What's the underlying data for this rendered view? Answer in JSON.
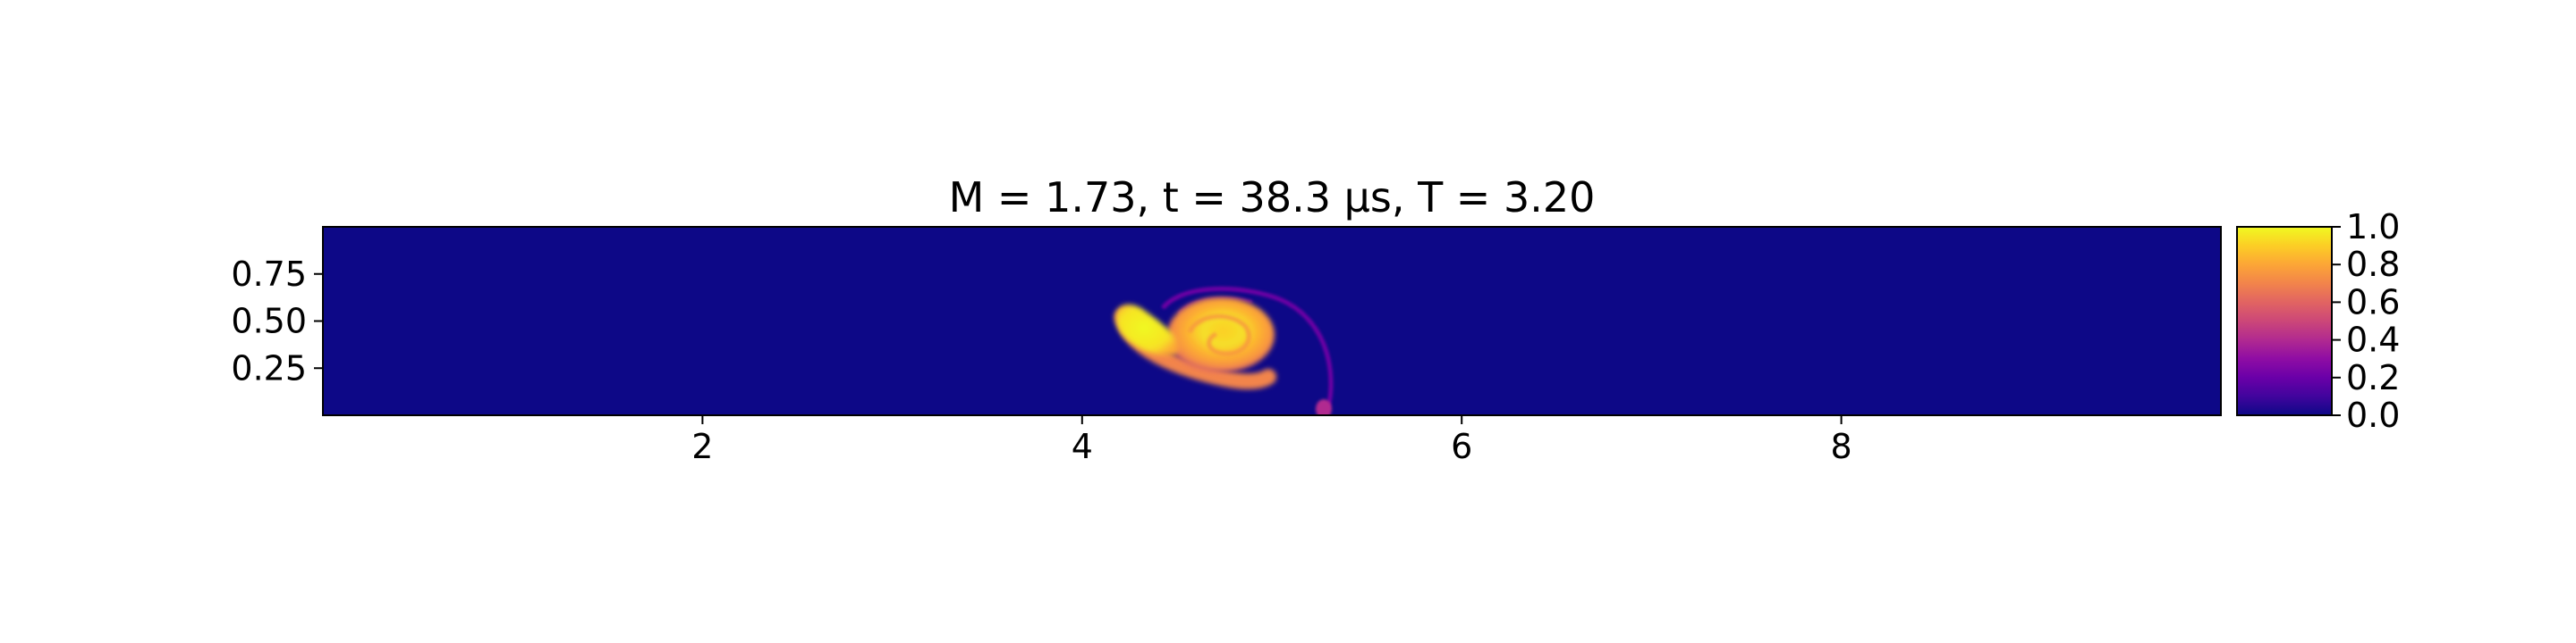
{
  "chart_data": {
    "type": "heatmap",
    "title": "M = 1.73, t = 38.3 μs, T = 3.20",
    "xlabel": "",
    "ylabel": "",
    "xlim": [
      0,
      10
    ],
    "ylim": [
      0,
      1
    ],
    "x_ticks": [
      2,
      4,
      6,
      8
    ],
    "x_tick_labels": [
      "2",
      "4",
      "6",
      "8"
    ],
    "y_ticks": [
      0.25,
      0.5,
      0.75
    ],
    "y_tick_labels": [
      "0.25",
      "0.50",
      "0.75"
    ],
    "colormap": "plasma",
    "colorbar": {
      "range": [
        0,
        1
      ],
      "ticks": [
        0,
        0.2,
        0.4,
        0.6,
        0.8,
        1.0
      ],
      "tick_labels": [
        "0.0",
        "0.2",
        "0.4",
        "0.6",
        "0.8",
        "1.0"
      ]
    },
    "background_value": 0.0,
    "features": [
      {
        "name": "main vortex core",
        "center": [
          4.75,
          0.42
        ],
        "radius": [
          0.27,
          0.19
        ],
        "value": 0.92
      },
      {
        "name": "leading blob",
        "center": [
          4.3,
          0.45
        ],
        "radius": [
          0.15,
          0.12
        ],
        "value": 1.0
      },
      {
        "name": "spiral arm",
        "from": [
          4.3,
          0.45
        ],
        "to": [
          5.0,
          0.25
        ],
        "value": 0.72
      },
      {
        "name": "outer filament",
        "from": [
          4.5,
          0.6
        ],
        "to": [
          5.3,
          0.05
        ],
        "value": 0.35
      },
      {
        "name": "wall spot",
        "center": [
          5.28,
          0.04
        ],
        "radius": [
          0.05,
          0.04
        ],
        "value": 0.45
      }
    ],
    "grid": false,
    "legend": ""
  }
}
